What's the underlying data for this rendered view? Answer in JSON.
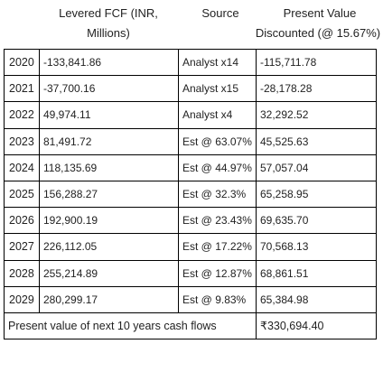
{
  "headers": {
    "fcf": "Levered FCF (INR, Millions)",
    "source": "Source",
    "pv_line1": "Present Value",
    "pv_line2": "Discounted (@ 15.67%)"
  },
  "rows": [
    {
      "year": "2020",
      "fcf": "-133,841.86",
      "source": "Analyst x14",
      "pv": "-115,711.78"
    },
    {
      "year": "2021",
      "fcf": "-37,700.16",
      "source": "Analyst x15",
      "pv": "-28,178.28"
    },
    {
      "year": "2022",
      "fcf": "49,974.11",
      "source": "Analyst x4",
      "pv": "32,292.52"
    },
    {
      "year": "2023",
      "fcf": "81,491.72",
      "source": "Est @ 63.07%",
      "pv": "45,525.63"
    },
    {
      "year": "2024",
      "fcf": "118,135.69",
      "source": "Est @ 44.97%",
      "pv": "57,057.04"
    },
    {
      "year": "2025",
      "fcf": "156,288.27",
      "source": "Est @ 32.3%",
      "pv": "65,258.95"
    },
    {
      "year": "2026",
      "fcf": "192,900.19",
      "source": "Est @ 23.43%",
      "pv": "69,635.70"
    },
    {
      "year": "2027",
      "fcf": "226,112.05",
      "source": "Est @ 17.22%",
      "pv": "70,568.13"
    },
    {
      "year": "2028",
      "fcf": "255,214.89",
      "source": "Est @ 12.87%",
      "pv": "68,861.51"
    },
    {
      "year": "2029",
      "fcf": "280,299.17",
      "source": "Est @ 9.83%",
      "pv": "65,384.98"
    }
  ],
  "total": {
    "label": "Present value of next 10 years cash flows",
    "value": "₹330,694.40"
  }
}
